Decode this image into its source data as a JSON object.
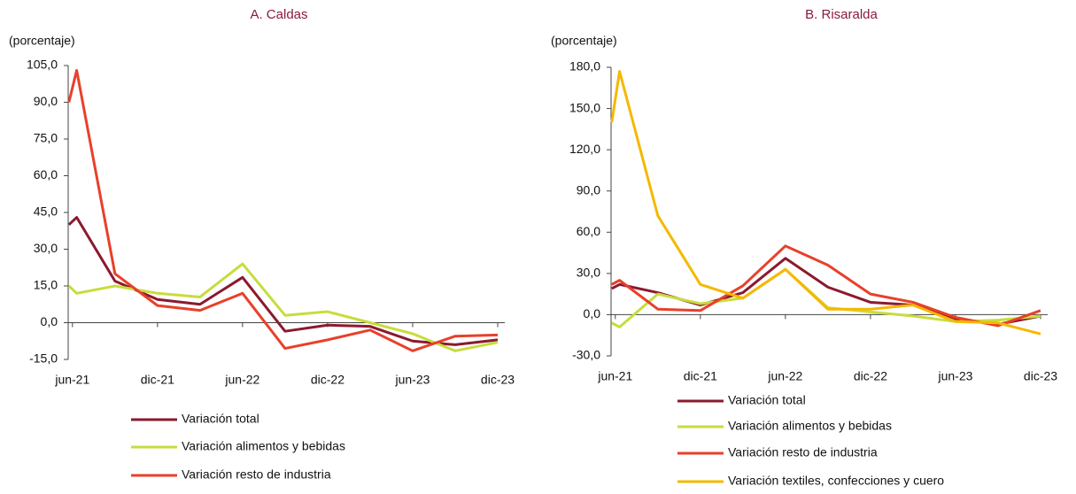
{
  "chart_data": [
    {
      "type": "line",
      "title": "A. Caldas",
      "y_label": "(porcentaje)",
      "x": [
        -0.25,
        0.3,
        3,
        6,
        9,
        12,
        15,
        18,
        21,
        24,
        27,
        30
      ],
      "xlim": [
        -0.3,
        30.5
      ],
      "xticks": [
        {
          "value": 0,
          "label": "jun-21"
        },
        {
          "value": 6,
          "label": "dic-21"
        },
        {
          "value": 12,
          "label": "jun-22"
        },
        {
          "value": 18,
          "label": "dic-22"
        },
        {
          "value": 24,
          "label": "jun-23"
        },
        {
          "value": 30,
          "label": "dic-23"
        }
      ],
      "ylim": [
        -15,
        105
      ],
      "yticks": [
        {
          "value": 105,
          "label": "105,0"
        },
        {
          "value": 90,
          "label": "90,0"
        },
        {
          "value": 75,
          "label": "75,0"
        },
        {
          "value": 60,
          "label": "60,0"
        },
        {
          "value": 45,
          "label": "45,0"
        },
        {
          "value": 30,
          "label": "30,0"
        },
        {
          "value": 15,
          "label": "15,0"
        },
        {
          "value": 0,
          "label": "0,0"
        },
        {
          "value": -15,
          "label": "-15,0"
        }
      ],
      "series": [
        {
          "name": "Variación total",
          "color": "#8b1a2f",
          "values": [
            40,
            43,
            17,
            9.5,
            7.5,
            18.5,
            -3.5,
            -1,
            -1.5,
            -7.5,
            -9,
            -7
          ]
        },
        {
          "name": "Variación alimentos y bebidas",
          "color": "#c8dc3c",
          "values": [
            15,
            12,
            15,
            12,
            10.5,
            24,
            3,
            4.5,
            0,
            -4.5,
            -11.5,
            -8
          ]
        },
        {
          "name": "Variación resto de industria",
          "color": "#e8402a",
          "values": [
            90,
            103,
            20,
            7,
            5,
            12,
            -10.5,
            -7,
            -3,
            -11.5,
            -5.5,
            -5
          ]
        }
      ]
    },
    {
      "type": "line",
      "title": "B. Risaralda",
      "y_label": "(porcentaje)",
      "x": [
        -0.25,
        0.3,
        3,
        6,
        9,
        12,
        15,
        18,
        21,
        24,
        27,
        30
      ],
      "xlim": [
        -0.3,
        30.5
      ],
      "xticks": [
        {
          "value": 0,
          "label": "jun-21"
        },
        {
          "value": 6,
          "label": "dic-21"
        },
        {
          "value": 12,
          "label": "jun-22"
        },
        {
          "value": 18,
          "label": "dic-22"
        },
        {
          "value": 24,
          "label": "jun-23"
        },
        {
          "value": 30,
          "label": "dic-23"
        }
      ],
      "ylim": [
        -30,
        180
      ],
      "yticks": [
        {
          "value": 180,
          "label": "180,0"
        },
        {
          "value": 150,
          "label": "150,0"
        },
        {
          "value": 120,
          "label": "120,0"
        },
        {
          "value": 90,
          "label": "90,0"
        },
        {
          "value": 60,
          "label": "60,0"
        },
        {
          "value": 30,
          "label": "30,0"
        },
        {
          "value": 0,
          "label": "0,0"
        },
        {
          "value": -30,
          "label": "-30,0"
        }
      ],
      "series": [
        {
          "name": "Variación total",
          "color": "#8b1a2f",
          "values": [
            19,
            22,
            16,
            7,
            16,
            41,
            20,
            9,
            7,
            -3,
            -7,
            -1
          ]
        },
        {
          "name": "Variación alimentos y bebidas",
          "color": "#c8dc3c",
          "values": [
            -6,
            -9,
            15,
            8,
            12,
            33,
            5,
            2,
            -1,
            -5,
            -4,
            -1
          ]
        },
        {
          "name": "Variación resto de industria",
          "color": "#e8402a",
          "values": [
            22,
            25,
            4,
            3,
            21,
            50,
            36,
            15,
            9,
            -2,
            -8,
            3
          ]
        },
        {
          "name": "Variación textiles, confecciones y cuero",
          "color": "#f5b800",
          "values": [
            140,
            177,
            72,
            22,
            12,
            33,
            4,
            4,
            7,
            -5,
            -6,
            -14
          ]
        }
      ]
    }
  ]
}
